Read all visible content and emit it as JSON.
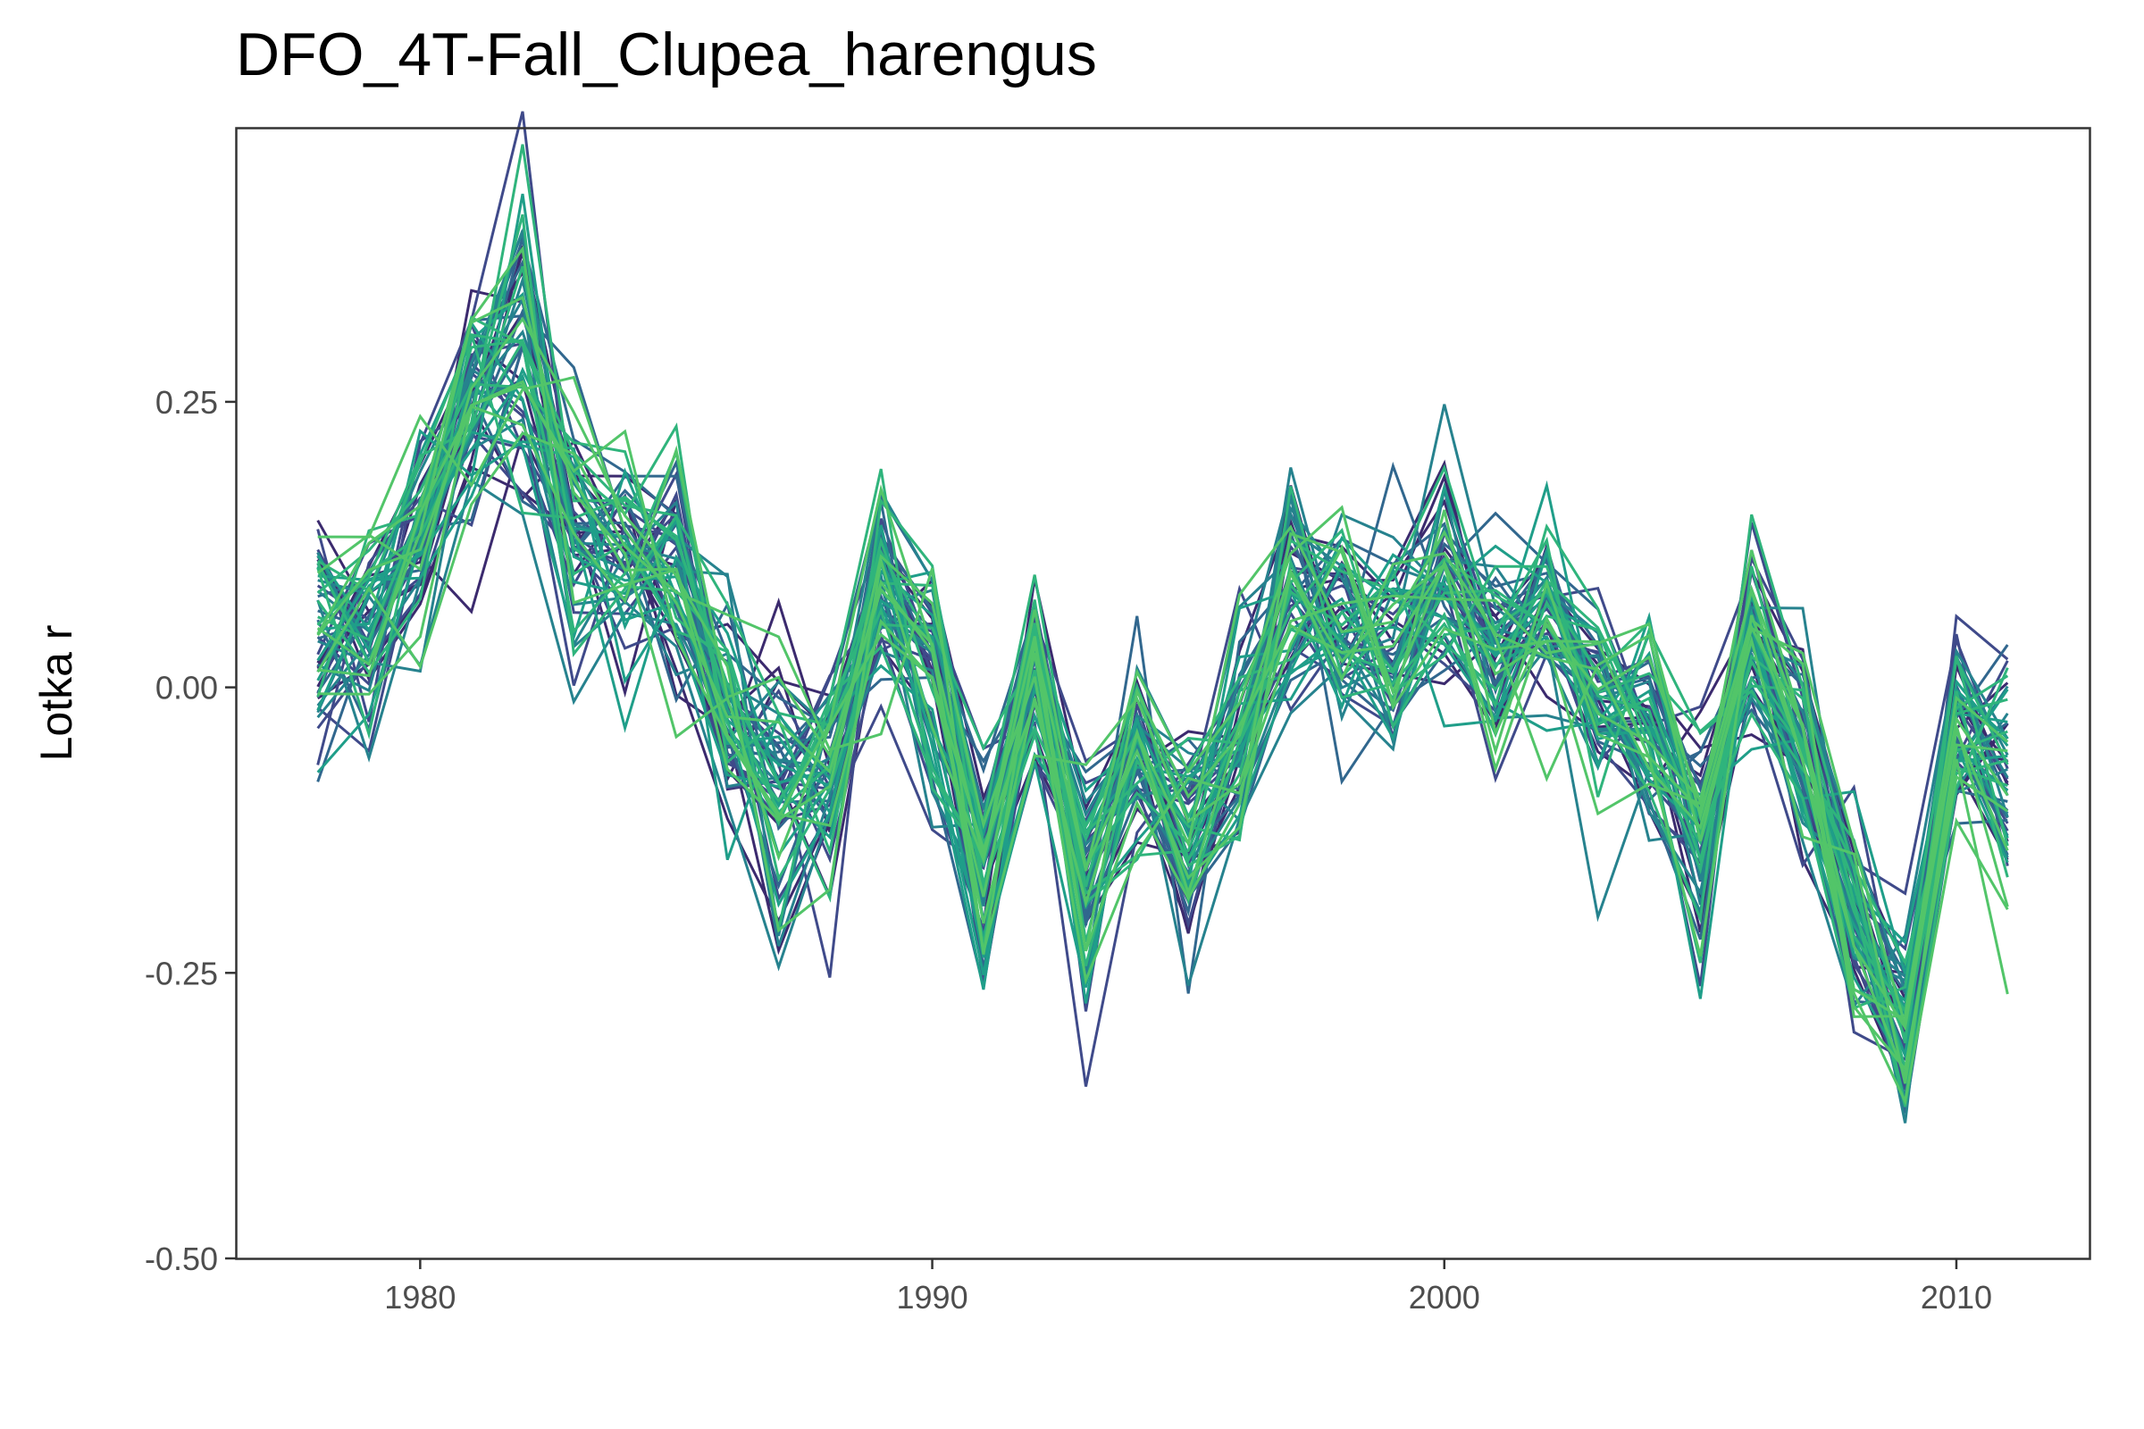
{
  "chart_data": {
    "type": "line",
    "title": "DFO_4T-Fall_Clupea_harengus",
    "xlabel": "",
    "ylabel": "Lotka r",
    "xlim": [
      1976.4,
      2012.6
    ],
    "ylim": [
      -0.5,
      0.49
    ],
    "x_ticks": [
      1980,
      1990,
      2000,
      2010
    ],
    "y_ticks": [
      0.25,
      0.0,
      -0.25,
      -0.5
    ],
    "y_tick_labels": [
      "0.25",
      "0.00",
      "-0.25",
      "-0.50"
    ],
    "grid": false,
    "legend": "none",
    "palette": [
      "#3b2a6e",
      "#3f4a8a",
      "#31678e",
      "#26828e",
      "#1f9e89",
      "#2fb47c",
      "#52c569"
    ],
    "n_series": 60,
    "x": [
      1978,
      1979,
      1980,
      1981,
      1982,
      1983,
      1984,
      1985,
      1986,
      1987,
      1988,
      1989,
      1990,
      1991,
      1992,
      1993,
      1994,
      1995,
      1996,
      1997,
      1998,
      1999,
      2000,
      2001,
      2002,
      2003,
      2004,
      2005,
      2006,
      2007,
      2008,
      2009,
      2010,
      2011
    ],
    "central_series": [
      0.04,
      0.05,
      0.13,
      0.25,
      0.31,
      0.14,
      0.11,
      0.1,
      -0.02,
      -0.1,
      -0.08,
      0.09,
      0.02,
      -0.17,
      0.02,
      -0.18,
      -0.05,
      -0.14,
      -0.05,
      0.08,
      0.05,
      0.03,
      0.09,
      0.03,
      0.07,
      0.0,
      -0.03,
      -0.13,
      0.04,
      -0.05,
      -0.2,
      -0.29,
      -0.04,
      -0.08
    ],
    "spread": [
      0.06,
      0.05,
      0.05,
      0.07,
      0.07,
      0.06,
      0.05,
      0.06,
      0.05,
      0.07,
      0.05,
      0.05,
      0.05,
      0.05,
      0.05,
      0.05,
      0.05,
      0.05,
      0.05,
      0.05,
      0.05,
      0.05,
      0.05,
      0.05,
      0.05,
      0.05,
      0.05,
      0.05,
      0.05,
      0.05,
      0.05,
      0.05,
      0.05,
      0.06
    ]
  }
}
